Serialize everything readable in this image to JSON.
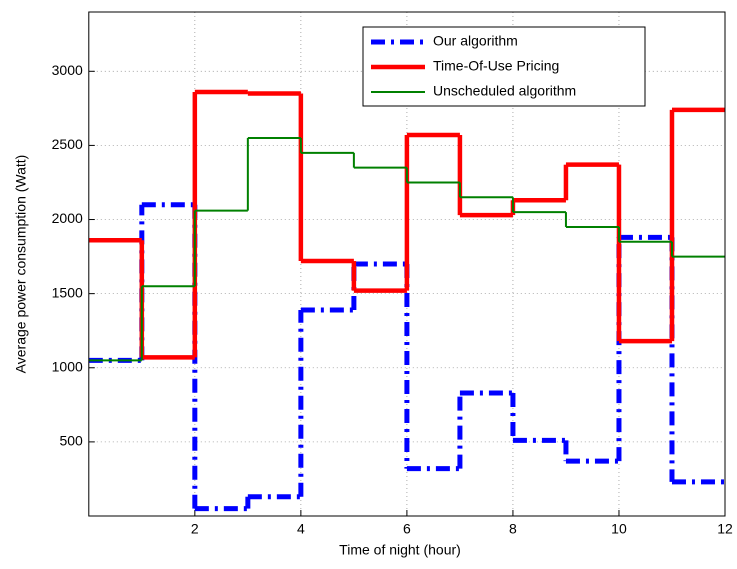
{
  "chart_data": {
    "type": "step",
    "x_label": "Time of night (hour)",
    "y_label": "Average power consumption (Watt)",
    "x": [
      0,
      1,
      2,
      3,
      4,
      5,
      6,
      7,
      8,
      9,
      10,
      11
    ],
    "xlim": [
      0,
      12
    ],
    "xticks": [
      2,
      4,
      6,
      8,
      10,
      12
    ],
    "ylim": [
      0,
      3400
    ],
    "yticks": [
      500,
      1000,
      1500,
      2000,
      2500,
      3000
    ],
    "grid": true,
    "legend": "upper right",
    "series": [
      {
        "name": "Our algorithm",
        "color": "#0000ff",
        "line_style": "dash-dot",
        "values": [
          1050,
          2100,
          50,
          130,
          1390,
          1700,
          320,
          830,
          510,
          370,
          1880,
          230
        ]
      },
      {
        "name": "Time-Of-Use Pricing",
        "color": "#ff0000",
        "line_style": "solid",
        "values": [
          1860,
          1070,
          2860,
          2850,
          1720,
          1520,
          2570,
          2030,
          2130,
          2370,
          1180,
          2740
        ]
      },
      {
        "name": "Unscheduled algorithm",
        "color": "#008000",
        "line_style": "solid",
        "values": [
          1050,
          1550,
          2060,
          2550,
          2450,
          2350,
          2250,
          2150,
          2050,
          1950,
          1850,
          1750
        ]
      }
    ]
  }
}
